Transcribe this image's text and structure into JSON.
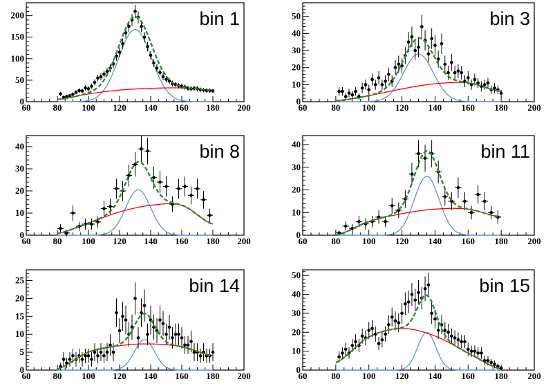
{
  "chart_data": [
    {
      "type": "scatter",
      "title": "bin 1",
      "xlim": [
        60,
        200
      ],
      "ylim": [
        0,
        230
      ],
      "xticks": [
        60,
        80,
        100,
        120,
        140,
        160,
        180,
        200
      ],
      "yticks": [
        0,
        50,
        100,
        150,
        200
      ],
      "signal": {
        "amp": 168,
        "mean": 130,
        "sigma": 10.5
      },
      "background": [
        [
          80,
          5
        ],
        [
          100,
          18
        ],
        [
          120,
          27
        ],
        [
          140,
          31
        ],
        [
          160,
          32
        ],
        [
          180,
          27
        ]
      ],
      "points": {
        "x": [
          82,
          84,
          86,
          88,
          90,
          92,
          94,
          96,
          98,
          100,
          102,
          104,
          106,
          108,
          110,
          112,
          114,
          116,
          118,
          120,
          122,
          124,
          126,
          128,
          130,
          132,
          134,
          136,
          138,
          140,
          142,
          144,
          146,
          148,
          150,
          152,
          154,
          156,
          158,
          160,
          162,
          164,
          166,
          168,
          170,
          172,
          174,
          176,
          178,
          180
        ],
        "y": [
          18,
          10,
          12,
          14,
          17,
          22,
          26,
          25,
          32,
          30,
          36,
          45,
          55,
          58,
          64,
          70,
          78,
          88,
          106,
          115,
          135,
          160,
          175,
          190,
          210,
          196,
          175,
          150,
          128,
          108,
          90,
          78,
          68,
          58,
          52,
          48,
          42,
          40,
          37,
          36,
          34,
          31,
          30,
          31,
          30,
          28,
          27,
          26,
          26,
          25
        ],
        "err": [
          5,
          4,
          4,
          4,
          5,
          5,
          5,
          5,
          6,
          6,
          6,
          7,
          8,
          8,
          8,
          9,
          9,
          10,
          11,
          11,
          12,
          13,
          13,
          14,
          15,
          14,
          13,
          12,
          11,
          10,
          9,
          9,
          8,
          8,
          7,
          7,
          7,
          6,
          6,
          6,
          6,
          6,
          6,
          6,
          6,
          5,
          5,
          5,
          5,
          5
        ]
      }
    },
    {
      "type": "scatter",
      "title": "bin 3",
      "xlim": [
        60,
        200
      ],
      "ylim": [
        0,
        58
      ],
      "xticks": [
        60,
        80,
        100,
        120,
        140,
        160,
        180,
        200
      ],
      "yticks": [
        0,
        10,
        20,
        30,
        40,
        50
      ],
      "signal": {
        "amp": 28,
        "mean": 130,
        "sigma": 9
      },
      "background": [
        [
          80,
          0.5
        ],
        [
          100,
          3.5
        ],
        [
          120,
          7.5
        ],
        [
          140,
          10.5
        ],
        [
          160,
          11
        ],
        [
          180,
          6
        ]
      ],
      "points": {
        "x": [
          82,
          84,
          86,
          88,
          90,
          92,
          94,
          96,
          98,
          100,
          102,
          104,
          106,
          108,
          110,
          112,
          114,
          116,
          118,
          120,
          122,
          124,
          126,
          128,
          130,
          132,
          134,
          136,
          138,
          140,
          142,
          144,
          146,
          148,
          150,
          152,
          154,
          156,
          158,
          160,
          162,
          164,
          166,
          168,
          170,
          172,
          174,
          176,
          178,
          180
        ],
        "y": [
          6,
          6,
          3,
          5,
          4,
          6,
          3,
          8,
          10,
          7,
          13,
          10,
          14,
          10,
          12,
          16,
          12,
          20,
          22,
          21,
          27,
          35,
          38,
          30,
          32,
          44,
          36,
          28,
          37,
          33,
          25,
          34,
          22,
          17,
          23,
          17,
          18,
          17,
          12,
          14,
          10,
          13,
          11,
          9,
          10,
          11,
          7,
          8,
          7,
          5
        ],
        "err": [
          2.5,
          2.5,
          2,
          2.5,
          2,
          2.5,
          2,
          3,
          3,
          3,
          3.5,
          3,
          4,
          3,
          3.5,
          4,
          3.5,
          4.5,
          5,
          4.5,
          5,
          6,
          6,
          5.5,
          6,
          7,
          6,
          5,
          6,
          6,
          5,
          6,
          5,
          4,
          5,
          4,
          4,
          4,
          3.5,
          4,
          3,
          3.5,
          3,
          3,
          3,
          3,
          2.5,
          3,
          2.5,
          2
        ]
      }
    },
    {
      "type": "scatter",
      "title": "bin 8",
      "xlim": [
        60,
        200
      ],
      "ylim": [
        0,
        45
      ],
      "xticks": [
        60,
        80,
        100,
        120,
        140,
        160,
        180,
        200
      ],
      "yticks": [
        0,
        10,
        20,
        30,
        40
      ],
      "signal": {
        "amp": 20.5,
        "mean": 132,
        "sigma": 8
      },
      "background": [
        [
          80,
          0.8
        ],
        [
          100,
          5.5
        ],
        [
          120,
          10.5
        ],
        [
          140,
          13.5
        ],
        [
          160,
          13.5
        ],
        [
          180,
          5
        ]
      ],
      "points": {
        "x": [
          82,
          86,
          90,
          94,
          98,
          102,
          106,
          110,
          114,
          118,
          122,
          126,
          130,
          134,
          138,
          142,
          146,
          150,
          154,
          158,
          162,
          166,
          170,
          174,
          178
        ],
        "y": [
          3,
          1,
          10,
          4,
          5,
          5,
          6,
          12,
          13,
          21,
          20,
          27,
          32,
          39,
          38,
          26,
          24,
          22,
          14,
          21,
          22,
          18,
          21,
          16,
          9
        ],
        "err": [
          2,
          1.5,
          3.5,
          2,
          2.5,
          2.5,
          2.5,
          3.5,
          3.5,
          4.5,
          4.5,
          5,
          5.5,
          6,
          6,
          5,
          5,
          4.5,
          3.5,
          4.5,
          4.5,
          4,
          4.5,
          4,
          3
        ]
      }
    },
    {
      "type": "scatter",
      "title": "bin 11",
      "xlim": [
        60,
        200
      ],
      "ylim": [
        0,
        44
      ],
      "xticks": [
        60,
        80,
        100,
        120,
        140,
        160,
        180,
        200
      ],
      "yticks": [
        0,
        10,
        20,
        30,
        40
      ],
      "signal": {
        "amp": 26,
        "mean": 135,
        "sigma": 7.5
      },
      "background": [
        [
          80,
          0
        ],
        [
          100,
          6
        ],
        [
          120,
          9.5
        ],
        [
          140,
          11.5
        ],
        [
          160,
          11.5
        ],
        [
          180,
          8
        ]
      ],
      "points": {
        "x": [
          82,
          86,
          90,
          94,
          98,
          102,
          106,
          110,
          114,
          118,
          122,
          126,
          130,
          134,
          138,
          142,
          146,
          150,
          154,
          158,
          162,
          166,
          170,
          174,
          178
        ],
        "y": [
          1,
          4,
          3,
          6,
          5,
          6,
          8,
          6,
          13,
          11,
          16,
          27,
          36,
          34,
          36,
          28,
          17,
          15,
          21,
          15,
          10,
          18,
          15,
          10,
          8
        ],
        "err": [
          1,
          2,
          2,
          2.5,
          2.5,
          2.5,
          3,
          2.5,
          3.5,
          3.5,
          4,
          5,
          6,
          6,
          6,
          5,
          4,
          4,
          4.5,
          4,
          3,
          4,
          4,
          3,
          3
        ]
      }
    },
    {
      "type": "scatter",
      "title": "bin 14",
      "xlim": [
        60,
        200
      ],
      "ylim": [
        0,
        28
      ],
      "xticks": [
        60,
        80,
        100,
        120,
        140,
        160,
        180,
        200
      ],
      "yticks": [
        0,
        5,
        10,
        15,
        20,
        25
      ],
      "signal": {
        "amp": 8.5,
        "mean": 136,
        "sigma": 6.5
      },
      "background": [
        [
          80,
          0.3
        ],
        [
          100,
          5
        ],
        [
          120,
          6.8
        ],
        [
          140,
          7.3
        ],
        [
          160,
          6.5
        ],
        [
          180,
          4
        ]
      ],
      "points": {
        "x": [
          82,
          84,
          86,
          88,
          90,
          92,
          94,
          96,
          98,
          100,
          102,
          104,
          106,
          108,
          110,
          112,
          114,
          116,
          118,
          120,
          122,
          124,
          126,
          128,
          130,
          132,
          134,
          136,
          138,
          140,
          142,
          144,
          146,
          148,
          150,
          152,
          154,
          156,
          158,
          160,
          162,
          164,
          166,
          168,
          170,
          172,
          174,
          176,
          178,
          180
        ],
        "y": [
          1,
          3,
          2,
          3,
          4,
          3,
          4,
          3,
          4,
          4,
          3,
          5,
          4,
          5,
          4,
          5,
          7,
          5,
          16,
          11,
          15,
          14,
          10,
          12,
          20,
          9,
          16,
          18,
          10,
          14,
          12,
          11,
          14,
          13,
          10,
          12,
          9,
          10,
          10,
          9,
          7,
          7,
          8,
          5,
          5,
          4,
          5,
          4,
          4,
          5
        ],
        "err": [
          1,
          2,
          1.5,
          2,
          2,
          2,
          2,
          2,
          2,
          2,
          2,
          2.5,
          2,
          2.5,
          2,
          2.5,
          3,
          2.5,
          4,
          3.5,
          4,
          4,
          3.5,
          3.5,
          4.5,
          3,
          4,
          4.5,
          3,
          4,
          3.5,
          3.5,
          4,
          3.5,
          3,
          3.5,
          3,
          3,
          3,
          3,
          2.5,
          2.5,
          3,
          2.5,
          2.5,
          2,
          2.5,
          2,
          2,
          2.5
        ]
      }
    },
    {
      "type": "scatter",
      "title": "bin 15",
      "xlim": [
        60,
        200
      ],
      "ylim": [
        0,
        53
      ],
      "xticks": [
        60,
        80,
        100,
        120,
        140,
        160,
        180,
        200
      ],
      "yticks": [
        0,
        10,
        20,
        30,
        40,
        50
      ],
      "signal": {
        "amp": 20,
        "mean": 135,
        "sigma": 5.5
      },
      "background": [
        [
          80,
          4
        ],
        [
          100,
          17.5
        ],
        [
          120,
          22
        ],
        [
          140,
          18
        ],
        [
          160,
          9
        ],
        [
          180,
          0.5
        ]
      ],
      "points": {
        "x": [
          82,
          84,
          86,
          88,
          90,
          92,
          94,
          96,
          98,
          100,
          102,
          104,
          106,
          108,
          110,
          112,
          114,
          116,
          118,
          120,
          122,
          124,
          126,
          128,
          130,
          132,
          134,
          136,
          138,
          140,
          142,
          144,
          146,
          148,
          150,
          152,
          154,
          156,
          158,
          160,
          162,
          164,
          166,
          168,
          170,
          172,
          174,
          176,
          178,
          180
        ],
        "y": [
          7,
          9,
          11,
          9,
          13,
          15,
          13,
          18,
          17,
          21,
          22,
          19,
          14,
          16,
          19,
          24,
          28,
          26,
          25,
          30,
          35,
          36,
          40,
          37,
          41,
          38,
          43,
          45,
          30,
          27,
          21,
          24,
          21,
          20,
          18,
          17,
          16,
          15,
          15,
          11,
          10,
          10,
          9,
          9,
          5,
          5,
          4,
          3,
          2,
          1
        ],
        "err": [
          3,
          3,
          3.5,
          3,
          3.5,
          4,
          3.5,
          4,
          4,
          4.5,
          4.5,
          4,
          3.5,
          4,
          4,
          5,
          5,
          5,
          5,
          5.5,
          6,
          6,
          6,
          6,
          6.5,
          6,
          6.5,
          6.5,
          5.5,
          5,
          4.5,
          5,
          4.5,
          4.5,
          4,
          4,
          4,
          3.5,
          3.5,
          3.5,
          3,
          3,
          3,
          3,
          2.5,
          2.5,
          2,
          2,
          1.5,
          1
        ]
      }
    }
  ],
  "colors": {
    "signal": "#5b8fe0",
    "background": "#ff0000",
    "total": "#2e8b2e",
    "points": "#000000",
    "axes": "#000000"
  }
}
